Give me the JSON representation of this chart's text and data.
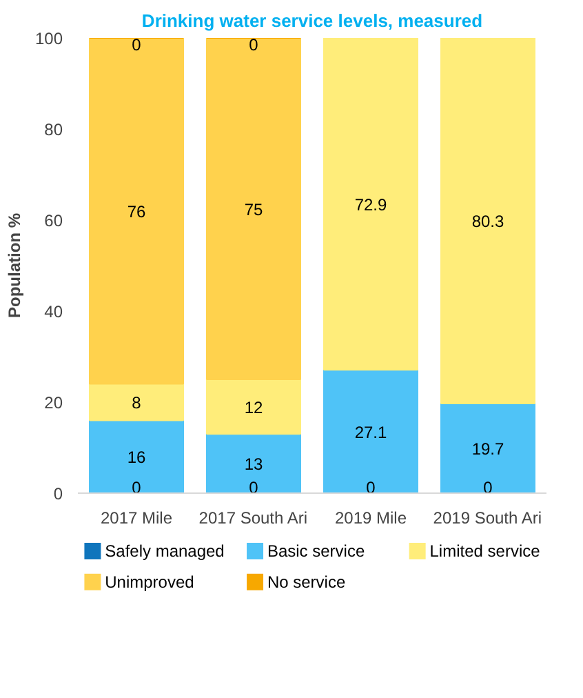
{
  "chart_data": {
    "type": "bar",
    "title": "Drinking water service levels, measured",
    "ylabel": "Population %",
    "categories": [
      "2017 Mile",
      "2017 South Ari",
      "2019 Mile",
      "2019 South Ari"
    ],
    "stacked": true,
    "ylim": [
      0,
      100
    ],
    "yticks": [
      0,
      20,
      40,
      60,
      80,
      100
    ],
    "grid": false,
    "legend": "bottom",
    "series": [
      {
        "name": "Safely managed",
        "color": "#0f75bc",
        "values": [
          0,
          0,
          0,
          0
        ],
        "value_labels": [
          "0",
          "0",
          "0",
          "0"
        ]
      },
      {
        "name": "Basic service",
        "color": "#4fc3f7",
        "values": [
          16,
          13,
          27.1,
          19.7
        ],
        "value_labels": [
          "16",
          "13",
          "27.1",
          "19.7"
        ]
      },
      {
        "name": "Limited service",
        "color": "#ffed7a",
        "values": [
          8,
          12,
          72.9,
          80.3
        ],
        "value_labels": [
          "8",
          "12",
          "72.9",
          "80.3"
        ]
      },
      {
        "name": "Unimproved",
        "color": "#ffd24d",
        "values": [
          76,
          75,
          null,
          null
        ],
        "value_labels": [
          "76",
          "75",
          null,
          null
        ]
      },
      {
        "name": "No service",
        "color": "#f7a800",
        "values": [
          0,
          0,
          null,
          null
        ],
        "value_labels": [
          "0",
          "0",
          null,
          null
        ]
      }
    ]
  }
}
